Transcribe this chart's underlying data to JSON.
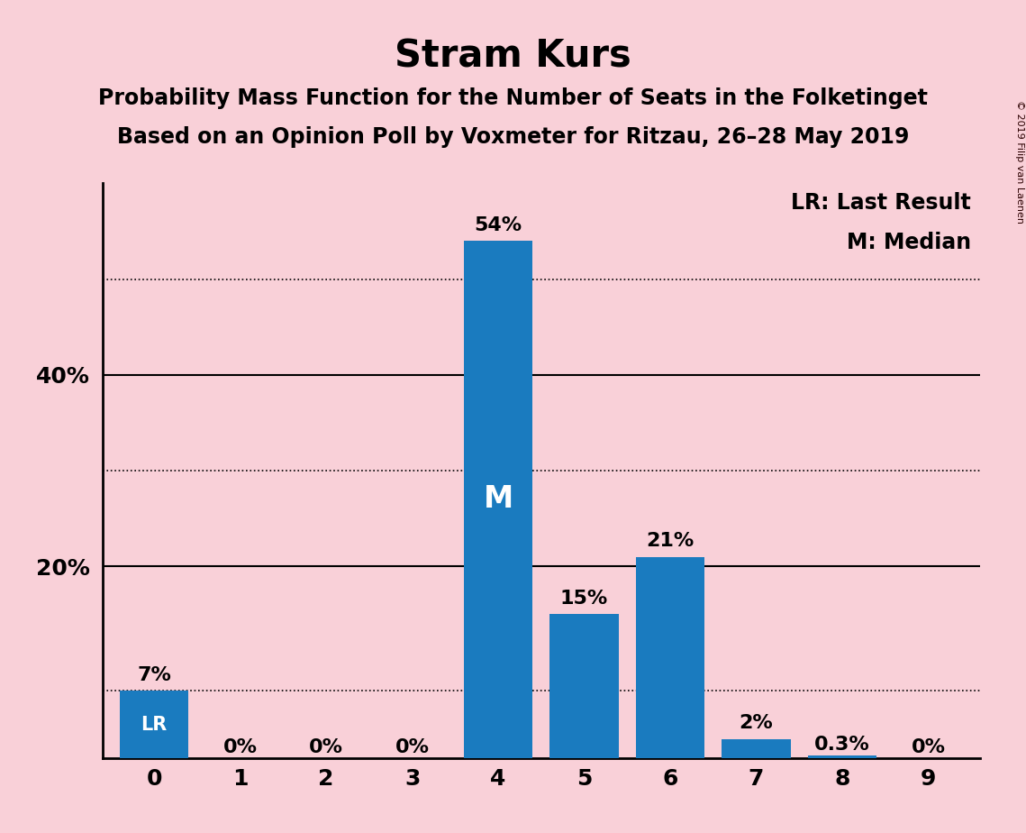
{
  "title": "Stram Kurs",
  "subtitle1": "Probability Mass Function for the Number of Seats in the Folketinget",
  "subtitle2": "Based on an Opinion Poll by Voxmeter for Ritzau, 26–28 May 2019",
  "categories": [
    0,
    1,
    2,
    3,
    4,
    5,
    6,
    7,
    8,
    9
  ],
  "values": [
    7,
    0,
    0,
    0,
    54,
    15,
    21,
    2,
    0.3,
    0
  ],
  "bar_color": "#1a7bbf",
  "background_color": "#f9d0d8",
  "ylim": [
    0,
    60
  ],
  "solid_yticks": [
    20,
    40
  ],
  "dotted_yticks": [
    7,
    30,
    50
  ],
  "bar_labels": [
    "7%",
    "0%",
    "0%",
    "0%",
    "54%",
    "15%",
    "21%",
    "2%",
    "0.3%",
    "0%"
  ],
  "lr_bar_index": 0,
  "median_bar_index": 4,
  "lr_label": "LR",
  "median_label": "M",
  "legend_text1": "LR: Last Result",
  "legend_text2": "M: Median",
  "copyright_text": "© 2019 Filip van Laenen",
  "title_fontsize": 30,
  "subtitle_fontsize": 17,
  "label_fontsize": 16,
  "tick_fontsize": 18,
  "legend_fontsize": 17
}
